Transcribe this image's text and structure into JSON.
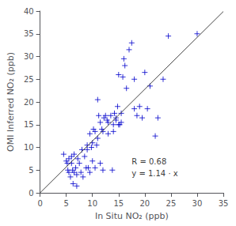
{
  "chart_data": {
    "type": "scatter",
    "title": "",
    "xlabel": "In Situ NO₂ (ppb)",
    "ylabel": "OMI Inferred NO₂ (ppb)",
    "xlim": [
      0,
      35
    ],
    "ylim": [
      0,
      40
    ],
    "xticks": [
      0,
      5,
      10,
      15,
      20,
      25,
      30,
      35
    ],
    "yticks": [
      0,
      5,
      10,
      15,
      20,
      25,
      30,
      35,
      40
    ],
    "grid": false,
    "annotation": {
      "text": [
        "R = 0.68",
        "y = 1.14 · x"
      ],
      "x": 17.5,
      "y": 3.0
    },
    "series": [
      {
        "type": "scatter",
        "marker": "+",
        "color": "#0000cc",
        "x": [
          4.5,
          5.0,
          5.2,
          5.3,
          5.5,
          5.5,
          5.8,
          6.0,
          6.0,
          6.2,
          6.3,
          6.5,
          6.5,
          6.8,
          7.0,
          7.0,
          7.2,
          7.5,
          7.8,
          8.0,
          8.2,
          8.5,
          8.8,
          9.0,
          9.0,
          9.2,
          9.5,
          9.5,
          9.8,
          10.0,
          10.0,
          10.2,
          10.5,
          10.5,
          10.8,
          11.0,
          11.0,
          11.2,
          11.5,
          11.5,
          11.8,
          12.0,
          12.0,
          12.2,
          12.5,
          12.8,
          13.0,
          13.0,
          13.5,
          13.8,
          14.0,
          14.0,
          14.2,
          14.5,
          14.5,
          14.8,
          15.0,
          15.0,
          15.2,
          15.5,
          15.5,
          15.8,
          16.0,
          16.2,
          16.5,
          17.0,
          17.5,
          18.0,
          18.0,
          18.5,
          19.0,
          19.5,
          20.0,
          20.5,
          21.0,
          22.0,
          22.5,
          23.5,
          24.5,
          30.0
        ],
        "values": [
          8.5,
          7.0,
          6.5,
          5.0,
          4.5,
          7.5,
          3.5,
          6.5,
          8.0,
          5.0,
          2.0,
          4.5,
          8.5,
          5.5,
          1.5,
          4.0,
          7.5,
          6.5,
          4.5,
          9.5,
          3.5,
          8.0,
          5.5,
          9.5,
          10.5,
          5.5,
          4.5,
          13.0,
          10.0,
          7.0,
          11.0,
          14.0,
          5.5,
          13.5,
          10.5,
          12.0,
          20.5,
          17.0,
          6.5,
          15.5,
          14.0,
          13.5,
          5.0,
          16.5,
          17.0,
          16.0,
          15.5,
          13.0,
          17.0,
          5.0,
          15.0,
          13.5,
          17.5,
          16.5,
          16.0,
          19.0,
          15.0,
          26.0,
          15.0,
          17.5,
          15.5,
          25.5,
          29.5,
          28.0,
          23.0,
          31.5,
          33.0,
          18.5,
          25.0,
          17.0,
          19.0,
          16.5,
          26.5,
          18.5,
          23.5,
          12.5,
          16.5,
          25.0,
          34.5,
          35.0
        ]
      },
      {
        "type": "line",
        "line_style": "solid",
        "color": "#444444",
        "x": [
          0,
          35
        ],
        "values": [
          0,
          39.9
        ]
      }
    ]
  }
}
